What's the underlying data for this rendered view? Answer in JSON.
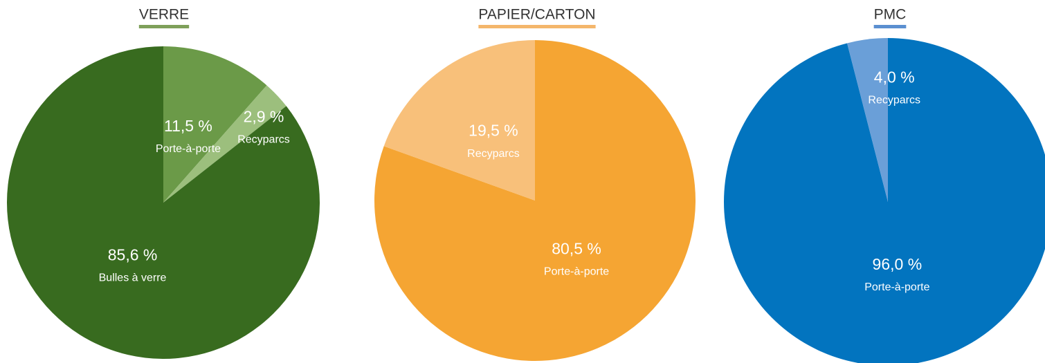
{
  "chart_data": [
    {
      "type": "pie",
      "title": "VERRE",
      "title_underline_color": "#7ea05a",
      "categories": [
        "Porte-à-porte",
        "Recyparcs",
        "Bulles à verre"
      ],
      "values": [
        11.5,
        2.9,
        85.6
      ],
      "value_labels": [
        "11,5 %",
        "2,9 %",
        "85,6 %"
      ],
      "colors": [
        "#6b9a48",
        "#9cbf7d",
        "#386b1f"
      ]
    },
    {
      "type": "pie",
      "title": "PAPIER/CARTON",
      "title_underline_color": "#f4b66b",
      "categories": [
        "Porte-à-porte",
        "Recyparcs"
      ],
      "values": [
        80.5,
        19.5
      ],
      "value_labels": [
        "80,5 %",
        "19,5 %"
      ],
      "colors": [
        "#f5a533",
        "#f8c07a"
      ]
    },
    {
      "type": "pie",
      "title": "PMC",
      "title_underline_color": "#5b8fd0",
      "categories": [
        "Porte-à-porte",
        "Recyparcs"
      ],
      "values": [
        96.0,
        4.0
      ],
      "value_labels": [
        "96,0 %",
        "4,0 %"
      ],
      "colors": [
        "#0274bf",
        "#6a9fd8"
      ]
    }
  ]
}
